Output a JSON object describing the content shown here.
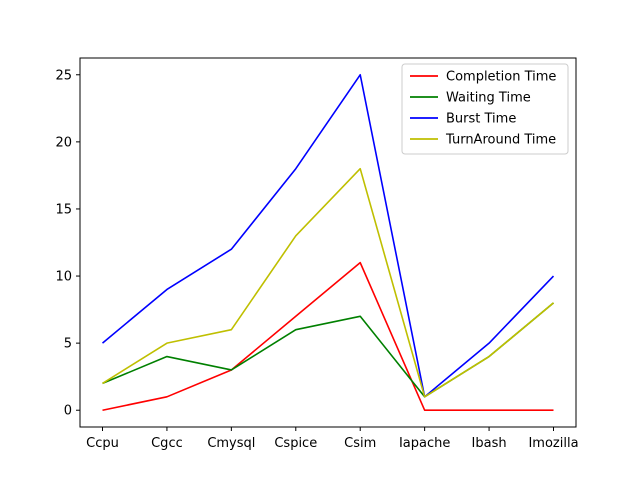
{
  "chart_data": {
    "type": "line",
    "title": "",
    "xlabel": "",
    "ylabel": "",
    "categories": [
      "Ccpu",
      "Cgcc",
      "Cmysql",
      "Cspice",
      "Csim",
      "Iapache",
      "Ibash",
      "Imozilla"
    ],
    "ylim": [
      -1.25,
      26.25
    ],
    "yticks": [
      0,
      5,
      10,
      15,
      20,
      25
    ],
    "grid": false,
    "legend": "top-right",
    "series": [
      {
        "name": "Completion Time",
        "color": "#ff0000",
        "values": [
          0,
          1,
          3,
          7,
          11,
          0,
          0,
          0
        ]
      },
      {
        "name": "Waiting Time",
        "color": "#008000",
        "values": [
          2,
          4,
          3,
          6,
          7,
          1,
          4,
          8
        ]
      },
      {
        "name": "Burst Time",
        "color": "#0000ff",
        "values": [
          5,
          9,
          12,
          18,
          25,
          1,
          5,
          10
        ]
      },
      {
        "name": "TurnAround Time",
        "color": "#bfbf00",
        "values": [
          2,
          5,
          6,
          13,
          18,
          1,
          4,
          8
        ]
      }
    ]
  }
}
